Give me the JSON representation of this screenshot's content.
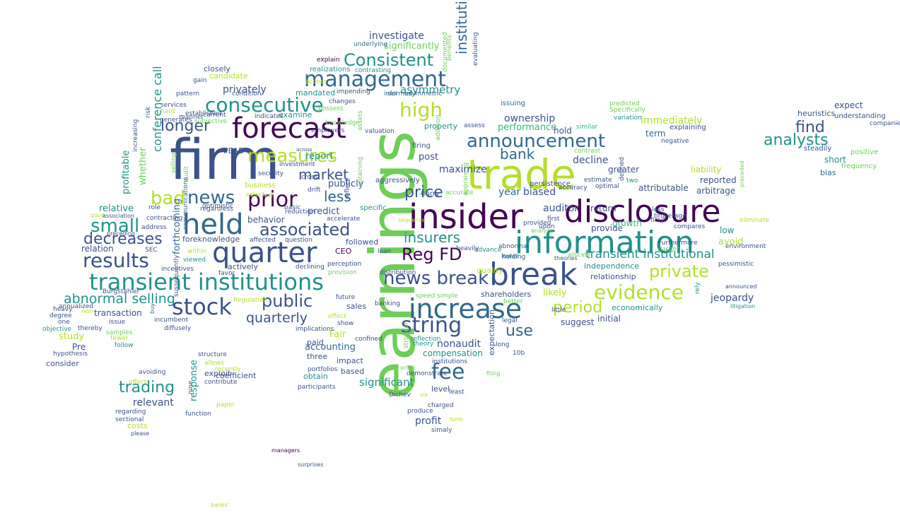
{
  "palette": {
    "dark_purple": "#440154",
    "indigo": "#3b528b",
    "blue": "#31688e",
    "teal": "#21918c",
    "green": "#35b779",
    "light_green": "#6ece58",
    "yellow_green": "#b5de2b",
    "yellow": "#fde725"
  },
  "words": [
    "earnings",
    "firm",
    "trade",
    "insider",
    "disclosure",
    "information",
    "break",
    "increase",
    "forecast",
    "management",
    "quarter",
    "transient institutions",
    "held",
    "consecutive",
    "Consistent",
    "high",
    "measures",
    "announcement",
    "prior",
    "news",
    "bad",
    "news break",
    "evidence",
    "fee",
    "string",
    "stock",
    "private",
    "results",
    "small",
    "associated",
    "decreases",
    "analysts",
    "find",
    "Reg FD",
    "public",
    "period",
    "use",
    "trading",
    "transient institutional",
    "insurers",
    "longer",
    "price",
    "less",
    "market",
    "bank",
    "abnormal selling",
    "quarterly",
    "institutional investors",
    "investigate",
    "significantly",
    "ownership",
    "immediately",
    "performance",
    "decline",
    "hold",
    "term",
    "explaining",
    "liability",
    "reported",
    "attributable",
    "arbitrage",
    "jeopardy",
    "avoid",
    "low",
    "relative",
    "predict",
    "publicly",
    "report",
    "behavior",
    "relation",
    "foreknowledge",
    "conference call",
    "PEAD",
    "profitable",
    "whether",
    "closely",
    "privately",
    "candidate",
    "mandated",
    "examine",
    "asymmetry",
    "biased",
    "auditor",
    "provide",
    "growth",
    "return",
    "greater",
    "relationship",
    "independence",
    "likely",
    "suggest",
    "initial",
    "economically",
    "shareholders",
    "nonaudit",
    "compensation",
    "significant",
    "level",
    "impact",
    "based",
    "obtain",
    "accounting",
    "profit",
    "relevant",
    "response",
    "exploit",
    "coefficient",
    "costs",
    "study",
    "Pre",
    "transaction",
    "consider",
    "followed",
    "CEO",
    "sales",
    "Fair",
    "three",
    "paid",
    "year",
    "quality",
    "maximize",
    "post",
    "expect",
    "short",
    "heuristics",
    "understanding",
    "companies",
    "steadily",
    "positive",
    "frequency",
    "bias",
    "explain",
    "underlying",
    "realizations",
    "contrasting",
    "issuing",
    "predicted",
    "Specifically",
    "variation",
    "similar",
    "contrast",
    "addition",
    "property",
    "assess",
    "firing",
    "valuation",
    "aggressively",
    "specific",
    "obtaining",
    "reflect",
    "assets",
    "curry",
    "accurate",
    "persistence",
    "accuracy",
    "estimate",
    "optimal",
    "defined",
    "two",
    "preceded",
    "eliminate",
    "compares",
    "environment",
    "Furthermore",
    "pessimistic",
    "larger",
    "announced",
    "litigation",
    "rely",
    "fired",
    "loss",
    "brokerage",
    "negative",
    "services",
    "established",
    "current",
    "subjective",
    "generates",
    "risk",
    "increasing",
    "selling",
    "audit",
    "optimistic",
    "communications",
    "forthcoming",
    "within",
    "viewed",
    "incentives",
    "SEC",
    "Burgstahler",
    "annualized",
    "heavy",
    "degree",
    "one",
    "objective",
    "hypothesis",
    "samples",
    "fewer",
    "follow",
    "issue",
    "diffusely",
    "incumbent",
    "buy",
    "thereby",
    "non",
    "contracting",
    "role",
    "address",
    "good",
    "association",
    "preceding",
    "pattern",
    "gain",
    "hard",
    "manner",
    "condition",
    "indicates",
    "possess",
    "changes",
    "knowledge",
    "employers",
    "access",
    "impending",
    "informed",
    "asymmetric",
    "benefits",
    "documented",
    "evaluating",
    "abnormal",
    "appraising",
    "lower",
    "upon",
    "analyze",
    "provided",
    "first",
    "holding",
    "advance",
    "heavily",
    "theories",
    "allocate",
    "better",
    "little",
    "legal",
    "reflection",
    "theory",
    "stronger",
    "demonstrate",
    "order",
    "six",
    "charged",
    "least",
    "Dichev",
    "produce",
    "simaly",
    "form",
    "filing",
    "portfolios",
    "institutions",
    "confined",
    "implications",
    "show",
    "effect",
    "banking",
    "speed",
    "simple",
    "distribution",
    "loan",
    "perception",
    "provision",
    "declining",
    "favor",
    "actively",
    "affected",
    "question",
    "security",
    "investment",
    "drift",
    "selective",
    "basic",
    "reduction",
    "accelerate",
    "regardless",
    "future",
    "Regulation",
    "business",
    "recently",
    "allows",
    "offers",
    "avoiding",
    "structure",
    "nine",
    "sussequently",
    "contribute",
    "regarding",
    "sectional",
    "please",
    "paper",
    "function",
    "participants",
    "managers",
    "surprises",
    "banks'",
    "expectation",
    "long",
    "10b",
    "across",
    "cross",
    "sell",
    "sequence"
  ]
}
